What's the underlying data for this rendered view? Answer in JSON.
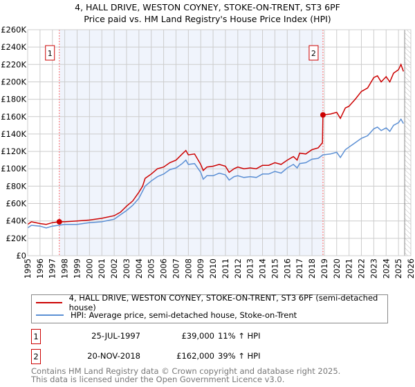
{
  "chart_data": {
    "type": "line",
    "title": "4, HALL DRIVE, WESTON COYNEY, STOKE-ON-TRENT, ST3 6PF",
    "subtitle": "Price paid vs. HM Land Registry's House Price Index (HPI)",
    "xlim": [
      1995,
      2026
    ],
    "ylim": [
      0,
      260000
    ],
    "x_ticks": [
      "1995",
      "1996",
      "1997",
      "1998",
      "1999",
      "2000",
      "2001",
      "2002",
      "2003",
      "2004",
      "2005",
      "2006",
      "2007",
      "2008",
      "2009",
      "2010",
      "2011",
      "2012",
      "2013",
      "2014",
      "2015",
      "2016",
      "2017",
      "2018",
      "2019",
      "2020",
      "2021",
      "2022",
      "2023",
      "2024",
      "2025",
      "2026"
    ],
    "y_ticks": [
      {
        "v": 0,
        "label": "£0"
      },
      {
        "v": 20000,
        "label": "£20K"
      },
      {
        "v": 40000,
        "label": "£40K"
      },
      {
        "v": 60000,
        "label": "£60K"
      },
      {
        "v": 80000,
        "label": "£80K"
      },
      {
        "v": 100000,
        "label": "£100K"
      },
      {
        "v": 120000,
        "label": "£120K"
      },
      {
        "v": 140000,
        "label": "£140K"
      },
      {
        "v": 160000,
        "label": "£160K"
      },
      {
        "v": 180000,
        "label": "£180K"
      },
      {
        "v": 200000,
        "label": "£200K"
      },
      {
        "v": 220000,
        "label": "£220K"
      },
      {
        "v": 240000,
        "label": "£240K"
      },
      {
        "v": 260000,
        "label": "£260K"
      }
    ],
    "grid": true,
    "shaded_range": [
      1997.56,
      2018.89
    ],
    "hatched_from": 2025.5,
    "series": [
      {
        "name": "4, HALL DRIVE, WESTON COYNEY, STOKE-ON-TRENT, ST3 6PF (semi-detached house)",
        "color": "#cc0000",
        "x": [
          1995,
          1995.3,
          1996,
          1996.5,
          1997,
          1997.56,
          1998,
          1999,
          2000,
          2001,
          2002,
          2002.5,
          2003,
          2003.5,
          2004,
          2004.3,
          2004.5,
          2005,
          2005.5,
          2006,
          2006.5,
          2007,
          2007.5,
          2007.8,
          2008,
          2008.5,
          2009,
          2009.2,
          2009.5,
          2010,
          2010.5,
          2011,
          2011.3,
          2011.7,
          2012,
          2012.5,
          2013,
          2013.5,
          2014,
          2014.5,
          2015,
          2015.5,
          2016,
          2016.5,
          2016.8,
          2017,
          2017.5,
          2018,
          2018.5,
          2018.85,
          2018.89,
          2019.5,
          2020,
          2020.3,
          2020.7,
          2021,
          2021.5,
          2022,
          2022.5,
          2023,
          2023.3,
          2023.6,
          2024,
          2024.3,
          2024.6,
          2025,
          2025.2,
          2025.4
        ],
        "y": [
          36000,
          39000,
          37000,
          36000,
          38000,
          39000,
          39000,
          40000,
          41000,
          43000,
          46000,
          50000,
          57000,
          63000,
          73000,
          80000,
          89000,
          94000,
          100000,
          102000,
          107000,
          110000,
          117000,
          121000,
          116000,
          117000,
          105000,
          98000,
          102000,
          103000,
          105000,
          103000,
          96000,
          100000,
          102000,
          100000,
          101000,
          100000,
          104000,
          104000,
          107000,
          105000,
          110000,
          114000,
          110000,
          118000,
          117000,
          122000,
          124000,
          130000,
          162000,
          163000,
          165000,
          158000,
          170000,
          172000,
          180000,
          189000,
          193000,
          205000,
          207000,
          200000,
          206000,
          200000,
          210000,
          214000,
          220000,
          212000
        ]
      },
      {
        "name": "HPI: Average price, semi-detached house, Stoke-on-Trent",
        "color": "#5b8fd4",
        "x": [
          1995,
          1995.3,
          1996,
          1996.5,
          1997,
          1998,
          1999,
          2000,
          2001,
          2002,
          2002.5,
          2003,
          2003.5,
          2004,
          2004.5,
          2005,
          2005.5,
          2006,
          2006.5,
          2007,
          2007.5,
          2007.8,
          2008,
          2008.5,
          2009,
          2009.2,
          2009.5,
          2010,
          2010.5,
          2011,
          2011.3,
          2011.7,
          2012,
          2012.5,
          2013,
          2013.5,
          2014,
          2014.5,
          2015,
          2015.5,
          2016,
          2016.5,
          2016.8,
          2017,
          2017.5,
          2018,
          2018.5,
          2018.89,
          2019.5,
          2020,
          2020.3,
          2020.7,
          2021,
          2021.5,
          2022,
          2022.5,
          2023,
          2023.3,
          2023.6,
          2024,
          2024.3,
          2024.6,
          2025,
          2025.2,
          2025.4
        ],
        "y": [
          32000,
          35000,
          34000,
          32000,
          34000,
          36000,
          36000,
          38000,
          39000,
          42000,
          47000,
          52000,
          58000,
          66000,
          80000,
          86000,
          91000,
          94000,
          99000,
          101000,
          106000,
          110000,
          105000,
          106000,
          96000,
          88000,
          92000,
          92000,
          95000,
          93000,
          87000,
          91000,
          92000,
          90000,
          91000,
          90000,
          94000,
          94000,
          97000,
          95000,
          101000,
          105000,
          101000,
          106000,
          107000,
          111000,
          112000,
          116000,
          117000,
          119000,
          113000,
          122000,
          125000,
          130000,
          135000,
          138000,
          146000,
          148000,
          144000,
          147000,
          143000,
          150000,
          153000,
          157000,
          152000
        ]
      }
    ],
    "sales": [
      {
        "id": "1",
        "x": 1997.56,
        "y": 39000,
        "date": "25-JUL-1997",
        "price": "£39,000",
        "hpi": "11% ↑ HPI"
      },
      {
        "id": "2",
        "x": 2018.89,
        "y": 162000,
        "date": "20-NOV-2018",
        "price": "£162,000",
        "hpi": "39% ↑ HPI"
      }
    ]
  },
  "footer": {
    "line1": "Contains HM Land Registry data © Crown copyright and database right 2025.",
    "line2": "This data is licensed under the Open Government Licence v3.0."
  }
}
